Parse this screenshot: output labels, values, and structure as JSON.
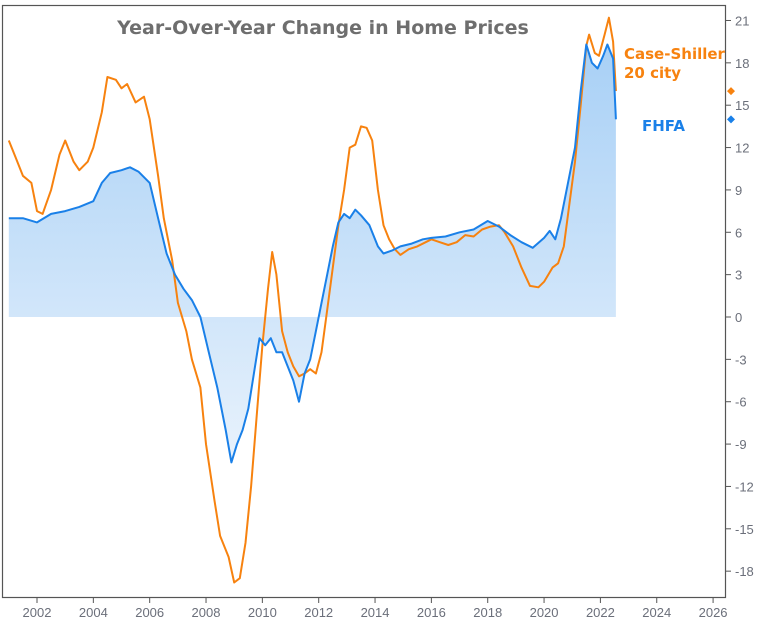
{
  "chart_data": {
    "type": "line",
    "title": "Year-Over-Year Change in Home Prices",
    "xlabel": "",
    "ylabel": "",
    "xlim": [
      2000.8,
      2026.5
    ],
    "ylim": [
      -19.5,
      22
    ],
    "x_ticks": [
      "2002",
      "2004",
      "2006",
      "2008",
      "2010",
      "2012",
      "2014",
      "2016",
      "2018",
      "2020",
      "2022",
      "2024",
      "2026"
    ],
    "y_ticks": [
      "21",
      "18",
      "15",
      "12",
      "9",
      "6",
      "3",
      "0",
      "-3",
      "-6",
      "-9",
      "-12",
      "-15",
      "-18"
    ],
    "colors": {
      "case_shiller": "#f7820f",
      "fhfa": "#1a80e8",
      "fill_top": "#a8d0f6",
      "fill_bottom": "#e8f2fc",
      "axis": "#555555"
    },
    "series": [
      {
        "name": "Case-Shiller 20 city",
        "label_lines": [
          "Case-Shiller",
          "20 city"
        ],
        "last_value": 16,
        "x": [
          2001.0,
          2001.2,
          2001.5,
          2001.8,
          2002.0,
          2002.2,
          2002.5,
          2002.8,
          2003.0,
          2003.3,
          2003.5,
          2003.8,
          2004.0,
          2004.3,
          2004.5,
          2004.8,
          2005.0,
          2005.2,
          2005.5,
          2005.8,
          2006.0,
          2006.3,
          2006.5,
          2006.8,
          2007.0,
          2007.3,
          2007.5,
          2007.8,
          2008.0,
          2008.3,
          2008.5,
          2008.8,
          2009.0,
          2009.2,
          2009.4,
          2009.6,
          2009.8,
          2010.0,
          2010.2,
          2010.35,
          2010.5,
          2010.7,
          2010.9,
          2011.1,
          2011.3,
          2011.5,
          2011.7,
          2011.9,
          2012.1,
          2012.3,
          2012.5,
          2012.7,
          2012.9,
          2013.1,
          2013.3,
          2013.5,
          2013.7,
          2013.9,
          2014.1,
          2014.3,
          2014.5,
          2014.7,
          2014.9,
          2015.2,
          2015.5,
          2015.8,
          2016.0,
          2016.3,
          2016.6,
          2016.9,
          2017.2,
          2017.5,
          2017.8,
          2018.1,
          2018.4,
          2018.6,
          2018.9,
          2019.2,
          2019.5,
          2019.8,
          2020.0,
          2020.3,
          2020.5,
          2020.7,
          2020.9,
          2021.1,
          2021.3,
          2021.5,
          2021.6,
          2021.8,
          2021.95,
          2022.15,
          2022.3,
          2022.45,
          2022.55
        ],
        "y": [
          12.5,
          11.5,
          10,
          9.5,
          7.5,
          7.3,
          9,
          11.5,
          12.5,
          11,
          10.4,
          11,
          12,
          14.5,
          17,
          16.8,
          16.2,
          16.5,
          15.2,
          15.6,
          14,
          10,
          7,
          4,
          1,
          -1,
          -3,
          -5,
          -9,
          -13,
          -15.5,
          -17,
          -18.8,
          -18.5,
          -16,
          -12,
          -7,
          -2,
          2,
          4.6,
          3,
          -1,
          -2.5,
          -3.5,
          -4.2,
          -4,
          -3.7,
          -4,
          -2.5,
          0.5,
          3.5,
          6.5,
          9,
          12,
          12.2,
          13.5,
          13.4,
          12.5,
          9,
          6.5,
          5.5,
          4.8,
          4.4,
          4.8,
          5,
          5.3,
          5.5,
          5.3,
          5.1,
          5.3,
          5.8,
          5.7,
          6.2,
          6.4,
          6.5,
          6,
          5,
          3.5,
          2.2,
          2.1,
          2.5,
          3.5,
          3.8,
          5,
          8,
          11,
          15,
          19.2,
          20,
          18.7,
          18.5,
          20,
          21.2,
          19.5,
          16
        ]
      },
      {
        "name": "FHFA",
        "label_lines": [
          "FHFA"
        ],
        "last_value": 14,
        "x": [
          2001.0,
          2001.5,
          2002.0,
          2002.5,
          2003.0,
          2003.5,
          2004.0,
          2004.3,
          2004.6,
          2005.0,
          2005.3,
          2005.6,
          2006.0,
          2006.3,
          2006.6,
          2006.9,
          2007.2,
          2007.5,
          2007.8,
          2008.1,
          2008.4,
          2008.7,
          2008.9,
          2009.1,
          2009.3,
          2009.5,
          2009.7,
          2009.9,
          2010.1,
          2010.3,
          2010.5,
          2010.7,
          2010.9,
          2011.1,
          2011.3,
          2011.5,
          2011.7,
          2011.9,
          2012.1,
          2012.3,
          2012.5,
          2012.7,
          2012.9,
          2013.1,
          2013.3,
          2013.5,
          2013.8,
          2014.1,
          2014.3,
          2014.6,
          2014.9,
          2015.3,
          2015.7,
          2016.0,
          2016.5,
          2017.0,
          2017.5,
          2018.0,
          2018.4,
          2018.8,
          2019.2,
          2019.6,
          2020.0,
          2020.2,
          2020.4,
          2020.6,
          2020.9,
          2021.1,
          2021.3,
          2021.5,
          2021.7,
          2021.9,
          2022.1,
          2022.25,
          2022.45,
          2022.55
        ],
        "y": [
          7,
          7,
          6.7,
          7.3,
          7.5,
          7.8,
          8.2,
          9.5,
          10.2,
          10.4,
          10.6,
          10.3,
          9.5,
          7,
          4.5,
          3,
          2,
          1.2,
          0,
          -2.5,
          -5,
          -8,
          -10.3,
          -9,
          -8,
          -6.5,
          -4,
          -1.5,
          -2,
          -1.5,
          -2.5,
          -2.5,
          -3.5,
          -4.5,
          -6,
          -4,
          -3,
          -1,
          1,
          3,
          5,
          6.7,
          7.3,
          7,
          7.6,
          7.2,
          6.5,
          5,
          4.5,
          4.7,
          5,
          5.2,
          5.5,
          5.6,
          5.7,
          6,
          6.2,
          6.8,
          6.4,
          5.8,
          5.3,
          4.9,
          5.6,
          6.1,
          5.5,
          7,
          10,
          12,
          16,
          19.3,
          18,
          17.6,
          18.5,
          19.3,
          18.3,
          14
        ]
      }
    ]
  }
}
